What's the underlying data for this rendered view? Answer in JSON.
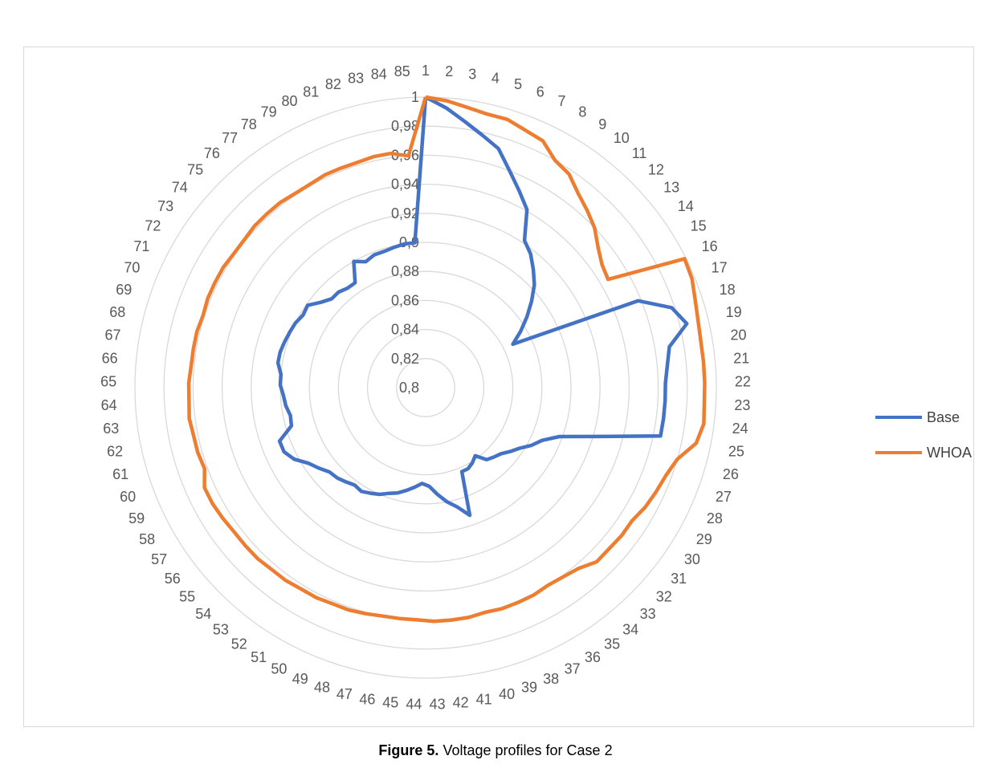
{
  "caption": {
    "figure_label": "Figure 5.",
    "text": "Voltage profiles for Case 2"
  },
  "colors": {
    "grid": "#d9d9d9",
    "label": "#595959",
    "base": "#4472c4",
    "whoa": "#ed7d31"
  },
  "chart_data": {
    "type": "radar",
    "title": "",
    "categories": [
      "1",
      "2",
      "3",
      "4",
      "5",
      "6",
      "7",
      "8",
      "9",
      "10",
      "11",
      "12",
      "13",
      "14",
      "15",
      "16",
      "17",
      "18",
      "19",
      "20",
      "21",
      "22",
      "23",
      "24",
      "25",
      "26",
      "27",
      "28",
      "29",
      "30",
      "31",
      "32",
      "33",
      "34",
      "35",
      "36",
      "37",
      "38",
      "39",
      "40",
      "41",
      "42",
      "43",
      "44",
      "45",
      "46",
      "47",
      "48",
      "49",
      "50",
      "51",
      "52",
      "53",
      "54",
      "55",
      "56",
      "57",
      "58",
      "59",
      "60",
      "61",
      "62",
      "63",
      "64",
      "65",
      "66",
      "67",
      "68",
      "69",
      "70",
      "71",
      "72",
      "73",
      "74",
      "75",
      "76",
      "77",
      "78",
      "79",
      "80",
      "81",
      "82",
      "83",
      "84",
      "85"
    ],
    "radial_ticks": [
      "0,8",
      "0,82",
      "0,84",
      "0,86",
      "0,88",
      "0,9",
      "0,92",
      "0,94",
      "0,96",
      "0,98",
      "1"
    ],
    "rmin": 0.8,
    "rmax": 1.0,
    "legend_position": "right",
    "series": [
      {
        "name": "Base",
        "color": "#4472c4",
        "values": [
          1.0,
          0.993,
          0.985,
          0.978,
          0.972,
          0.96,
          0.95,
          0.941,
          0.922,
          0.917,
          0.91,
          0.903,
          0.894,
          0.885,
          0.876,
          0.867,
          0.958,
          0.978,
          0.985,
          0.97,
          0.967,
          0.965,
          0.965,
          0.965,
          0.965,
          0.923,
          0.898,
          0.888,
          0.883,
          0.877,
          0.873,
          0.869,
          0.867,
          0.865,
          0.858,
          0.861,
          0.863,
          0.863,
          0.893,
          0.885,
          0.88,
          0.874,
          0.868,
          0.866,
          0.869,
          0.872,
          0.875,
          0.877,
          0.88,
          0.882,
          0.884,
          0.883,
          0.885,
          0.887,
          0.888,
          0.892,
          0.896,
          0.903,
          0.907,
          0.907,
          0.896,
          0.895,
          0.897,
          0.898,
          0.9,
          0.9,
          0.903,
          0.903,
          0.902,
          0.901,
          0.9,
          0.898,
          0.899,
          0.893,
          0.889,
          0.889,
          0.887,
          0.887,
          0.9,
          0.896,
          0.898,
          0.898,
          0.899,
          0.9,
          0.9
        ]
      },
      {
        "name": "WHOA",
        "color": "#ed7d31",
        "values": [
          1.0,
          0.998,
          0.995,
          0.993,
          0.993,
          0.99,
          0.988,
          0.98,
          0.977,
          0.97,
          0.965,
          0.96,
          0.953,
          0.948,
          0.946,
          0.999,
          0.998,
          0.995,
          0.993,
          0.992,
          0.992,
          0.992,
          0.992,
          0.993,
          0.99,
          0.98,
          0.976,
          0.974,
          0.972,
          0.969,
          0.969,
          0.968,
          0.968,
          0.963,
          0.961,
          0.96,
          0.961,
          0.961,
          0.961,
          0.96,
          0.961,
          0.961,
          0.961,
          0.96,
          0.96,
          0.96,
          0.961,
          0.962,
          0.962,
          0.963,
          0.963,
          0.964,
          0.964,
          0.965,
          0.965,
          0.965,
          0.966,
          0.967,
          0.967,
          0.962,
          0.963,
          0.963,
          0.964,
          0.963,
          0.963,
          0.962,
          0.962,
          0.962,
          0.961,
          0.962,
          0.962,
          0.962,
          0.961,
          0.961,
          0.962,
          0.962,
          0.962,
          0.961,
          0.961,
          0.962,
          0.962,
          0.962,
          0.963,
          0.963,
          0.96
        ]
      }
    ]
  }
}
